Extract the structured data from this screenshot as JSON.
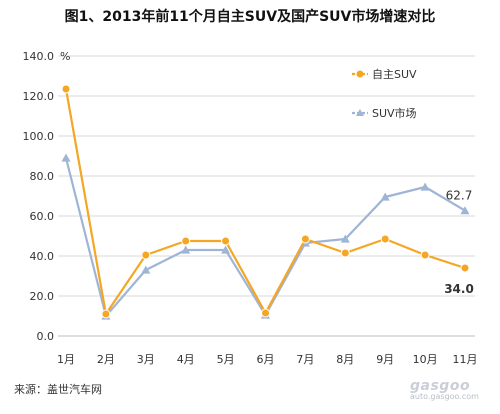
{
  "chart_data": {
    "type": "line",
    "title": "图1、2013年前11个月自主SUV及国产SUV市场增速对比",
    "ylabel": "%",
    "ylim": [
      0,
      140
    ],
    "yticks": [
      "0.0",
      "20.0",
      "40.0",
      "60.0",
      "80.0",
      "100.0",
      "120.0",
      "140.0"
    ],
    "categories": [
      "1月",
      "2月",
      "3月",
      "4月",
      "5月",
      "6月",
      "7月",
      "8月",
      "9月",
      "10月",
      "11月"
    ],
    "grid": true,
    "legend_position": "top-right",
    "series": [
      {
        "name": "自主SUV",
        "color": "#f5a623",
        "marker": "circle",
        "values": [
          123.5,
          11,
          40.5,
          47.5,
          47.5,
          11.5,
          48.5,
          41.5,
          48.5,
          40.5,
          34.0
        ]
      },
      {
        "name": "SUV市场",
        "color": "#9fb5d6",
        "marker": "triangle",
        "values": [
          89,
          10,
          33,
          43,
          43,
          10.5,
          46.5,
          48.5,
          69.5,
          74.5,
          62.7
        ]
      }
    ],
    "annotations": [
      {
        "series": 1,
        "index": 10,
        "text": "62.7"
      },
      {
        "series": 0,
        "index": 10,
        "text": "34.0"
      }
    ]
  },
  "source": "来源：盖世汽车网",
  "watermark": {
    "logo": "gasgoo",
    "url": "auto.gasgoo.com"
  }
}
